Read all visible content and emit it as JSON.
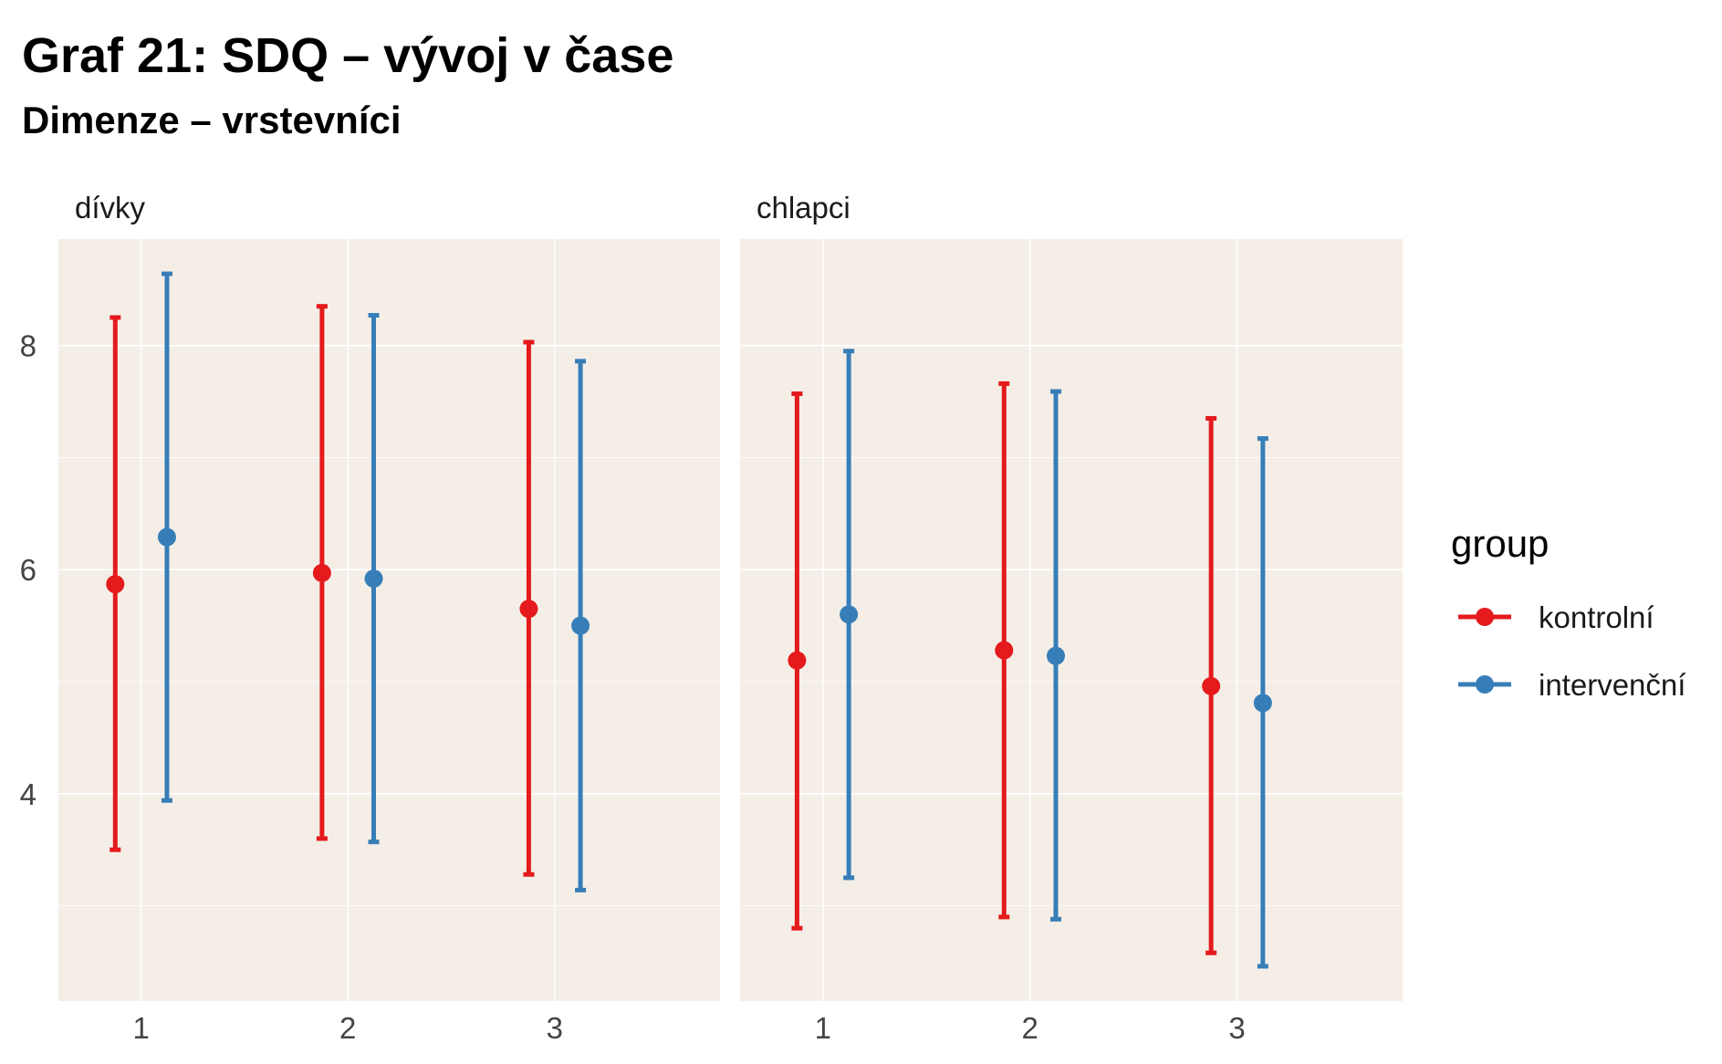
{
  "chart_data": {
    "type": "errorbar",
    "title": "Graf 21: SDQ – vývoj v čase",
    "subtitle": "Dimenze – vrstevníci",
    "xlabel": "",
    "ylabel": "",
    "x_categories": [
      "1",
      "2",
      "3"
    ],
    "y_ticks": [
      "4",
      "6",
      "8"
    ],
    "ylim": [
      2.15,
      8.95
    ],
    "grid": true,
    "panel_background": "#F4EEE7",
    "grid_color": "#FFFFFF",
    "legend": {
      "title": "group",
      "position": "right"
    },
    "series": [
      {
        "name": "kontrolní",
        "color": "#E41A1C"
      },
      {
        "name": "intervenční",
        "color": "#377EB8"
      }
    ],
    "facets": [
      {
        "label": "dívky",
        "data": {
          "kontrolní": [
            {
              "x": "1",
              "mean": 5.87,
              "low": 3.5,
              "high": 8.25
            },
            {
              "x": "2",
              "mean": 5.97,
              "low": 3.6,
              "high": 8.35
            },
            {
              "x": "3",
              "mean": 5.65,
              "low": 3.28,
              "high": 8.03
            }
          ],
          "intervenční": [
            {
              "x": "1",
              "mean": 6.29,
              "low": 3.94,
              "high": 8.64
            },
            {
              "x": "2",
              "mean": 5.92,
              "low": 3.57,
              "high": 8.27
            },
            {
              "x": "3",
              "mean": 5.5,
              "low": 3.14,
              "high": 7.86
            }
          ]
        }
      },
      {
        "label": "chlapci",
        "data": {
          "kontrolní": [
            {
              "x": "1",
              "mean": 5.19,
              "low": 2.8,
              "high": 7.57
            },
            {
              "x": "2",
              "mean": 5.28,
              "low": 2.9,
              "high": 7.66
            },
            {
              "x": "3",
              "mean": 4.96,
              "low": 2.58,
              "high": 7.35
            }
          ],
          "intervenční": [
            {
              "x": "1",
              "mean": 5.6,
              "low": 3.25,
              "high": 7.95
            },
            {
              "x": "2",
              "mean": 5.23,
              "low": 2.88,
              "high": 7.59
            },
            {
              "x": "3",
              "mean": 4.81,
              "low": 2.46,
              "high": 7.17
            }
          ]
        }
      }
    ]
  }
}
